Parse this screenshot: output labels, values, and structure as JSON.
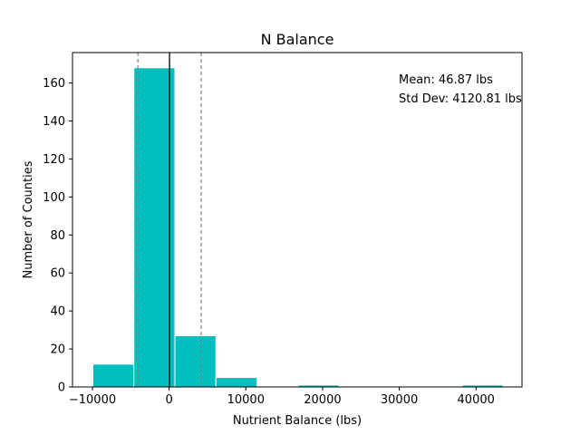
{
  "chart_data": {
    "type": "bar",
    "title": "N Balance",
    "xlabel": "Nutrient Balance (lbs)",
    "ylabel": "Number of Counties",
    "xlim": [
      -12600,
      46000
    ],
    "ylim": [
      0,
      176
    ],
    "xticks": [
      -10000,
      0,
      10000,
      20000,
      30000,
      40000
    ],
    "xtick_labels": [
      "−10000",
      "0",
      "10000",
      "20000",
      "30000",
      "40000"
    ],
    "yticks": [
      0,
      20,
      40,
      60,
      80,
      100,
      120,
      140,
      160
    ],
    "bins": [
      {
        "start": -9950,
        "end": -4600,
        "count": 12
      },
      {
        "start": -4600,
        "end": 750,
        "count": 168
      },
      {
        "start": 750,
        "end": 6100,
        "count": 27
      },
      {
        "start": 6100,
        "end": 11450,
        "count": 5
      },
      {
        "start": 11450,
        "end": 16800,
        "count": 0
      },
      {
        "start": 16800,
        "end": 22150,
        "count": 1
      },
      {
        "start": 22150,
        "end": 27500,
        "count": 0
      },
      {
        "start": 27500,
        "end": 32850,
        "count": 0
      },
      {
        "start": 32850,
        "end": 38200,
        "count": 0
      },
      {
        "start": 38200,
        "end": 43550,
        "count": 1
      }
    ],
    "mean_line": 46.87,
    "std_lines": [
      -4073.94,
      4167.68
    ],
    "annotations": [
      "Mean: 46.87 lbs",
      "Std Dev: 4120.81 lbs"
    ],
    "colors": {
      "bars": "#00bfbf",
      "bar_edge": "#ffffff",
      "mean_line": "#000000",
      "std_lines": "#808080"
    },
    "grid": false,
    "legend": "none"
  }
}
